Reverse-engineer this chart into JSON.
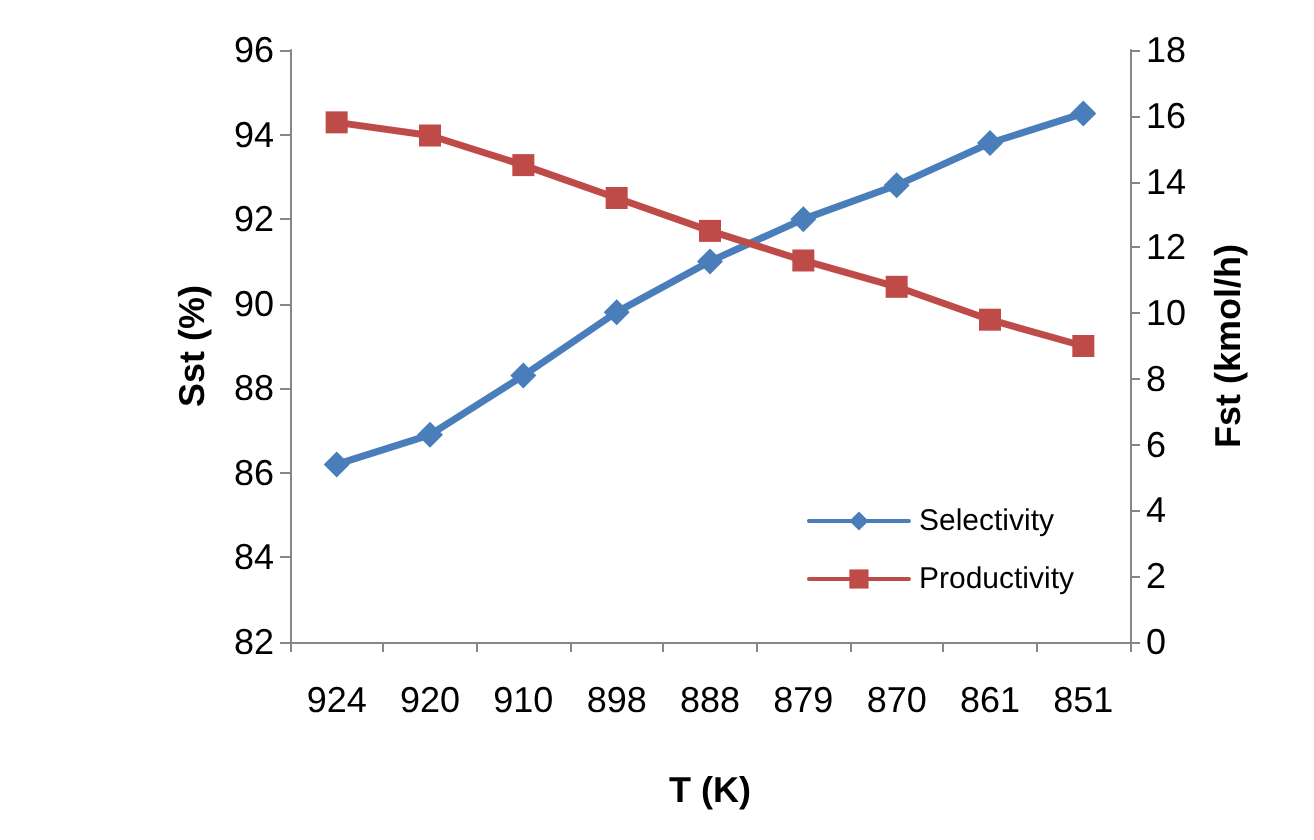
{
  "chart_data": {
    "type": "line",
    "xlabel": "T (K)",
    "ylabel": "Sst (%)",
    "y2label": "Fst (kmol/h)",
    "categories": [
      "924",
      "920",
      "910",
      "898",
      "888",
      "879",
      "870",
      "861",
      "851"
    ],
    "series": [
      {
        "name": "Selectivity",
        "color": "#4a7ebb",
        "marker": "diamond",
        "values": [
          86.2,
          86.9,
          88.3,
          89.8,
          91.0,
          92.0,
          92.8,
          93.8,
          94.5
        ]
      },
      {
        "name": "Productivity",
        "color": "#be4b48",
        "marker": "square",
        "axis": "y2",
        "values": [
          15.8,
          15.4,
          14.5,
          13.5,
          12.5,
          11.6,
          10.8,
          9.8,
          9.0
        ]
      }
    ],
    "ylim": [
      82,
      96
    ],
    "yticks": [
      82,
      84,
      86,
      88,
      90,
      92,
      94,
      96
    ],
    "y2lim": [
      0,
      18
    ],
    "y2ticks": [
      0,
      2,
      4,
      6,
      8,
      10,
      12,
      14,
      16,
      18
    ],
    "legend": "bottom right",
    "grid": false,
    "line_style": "solid"
  }
}
